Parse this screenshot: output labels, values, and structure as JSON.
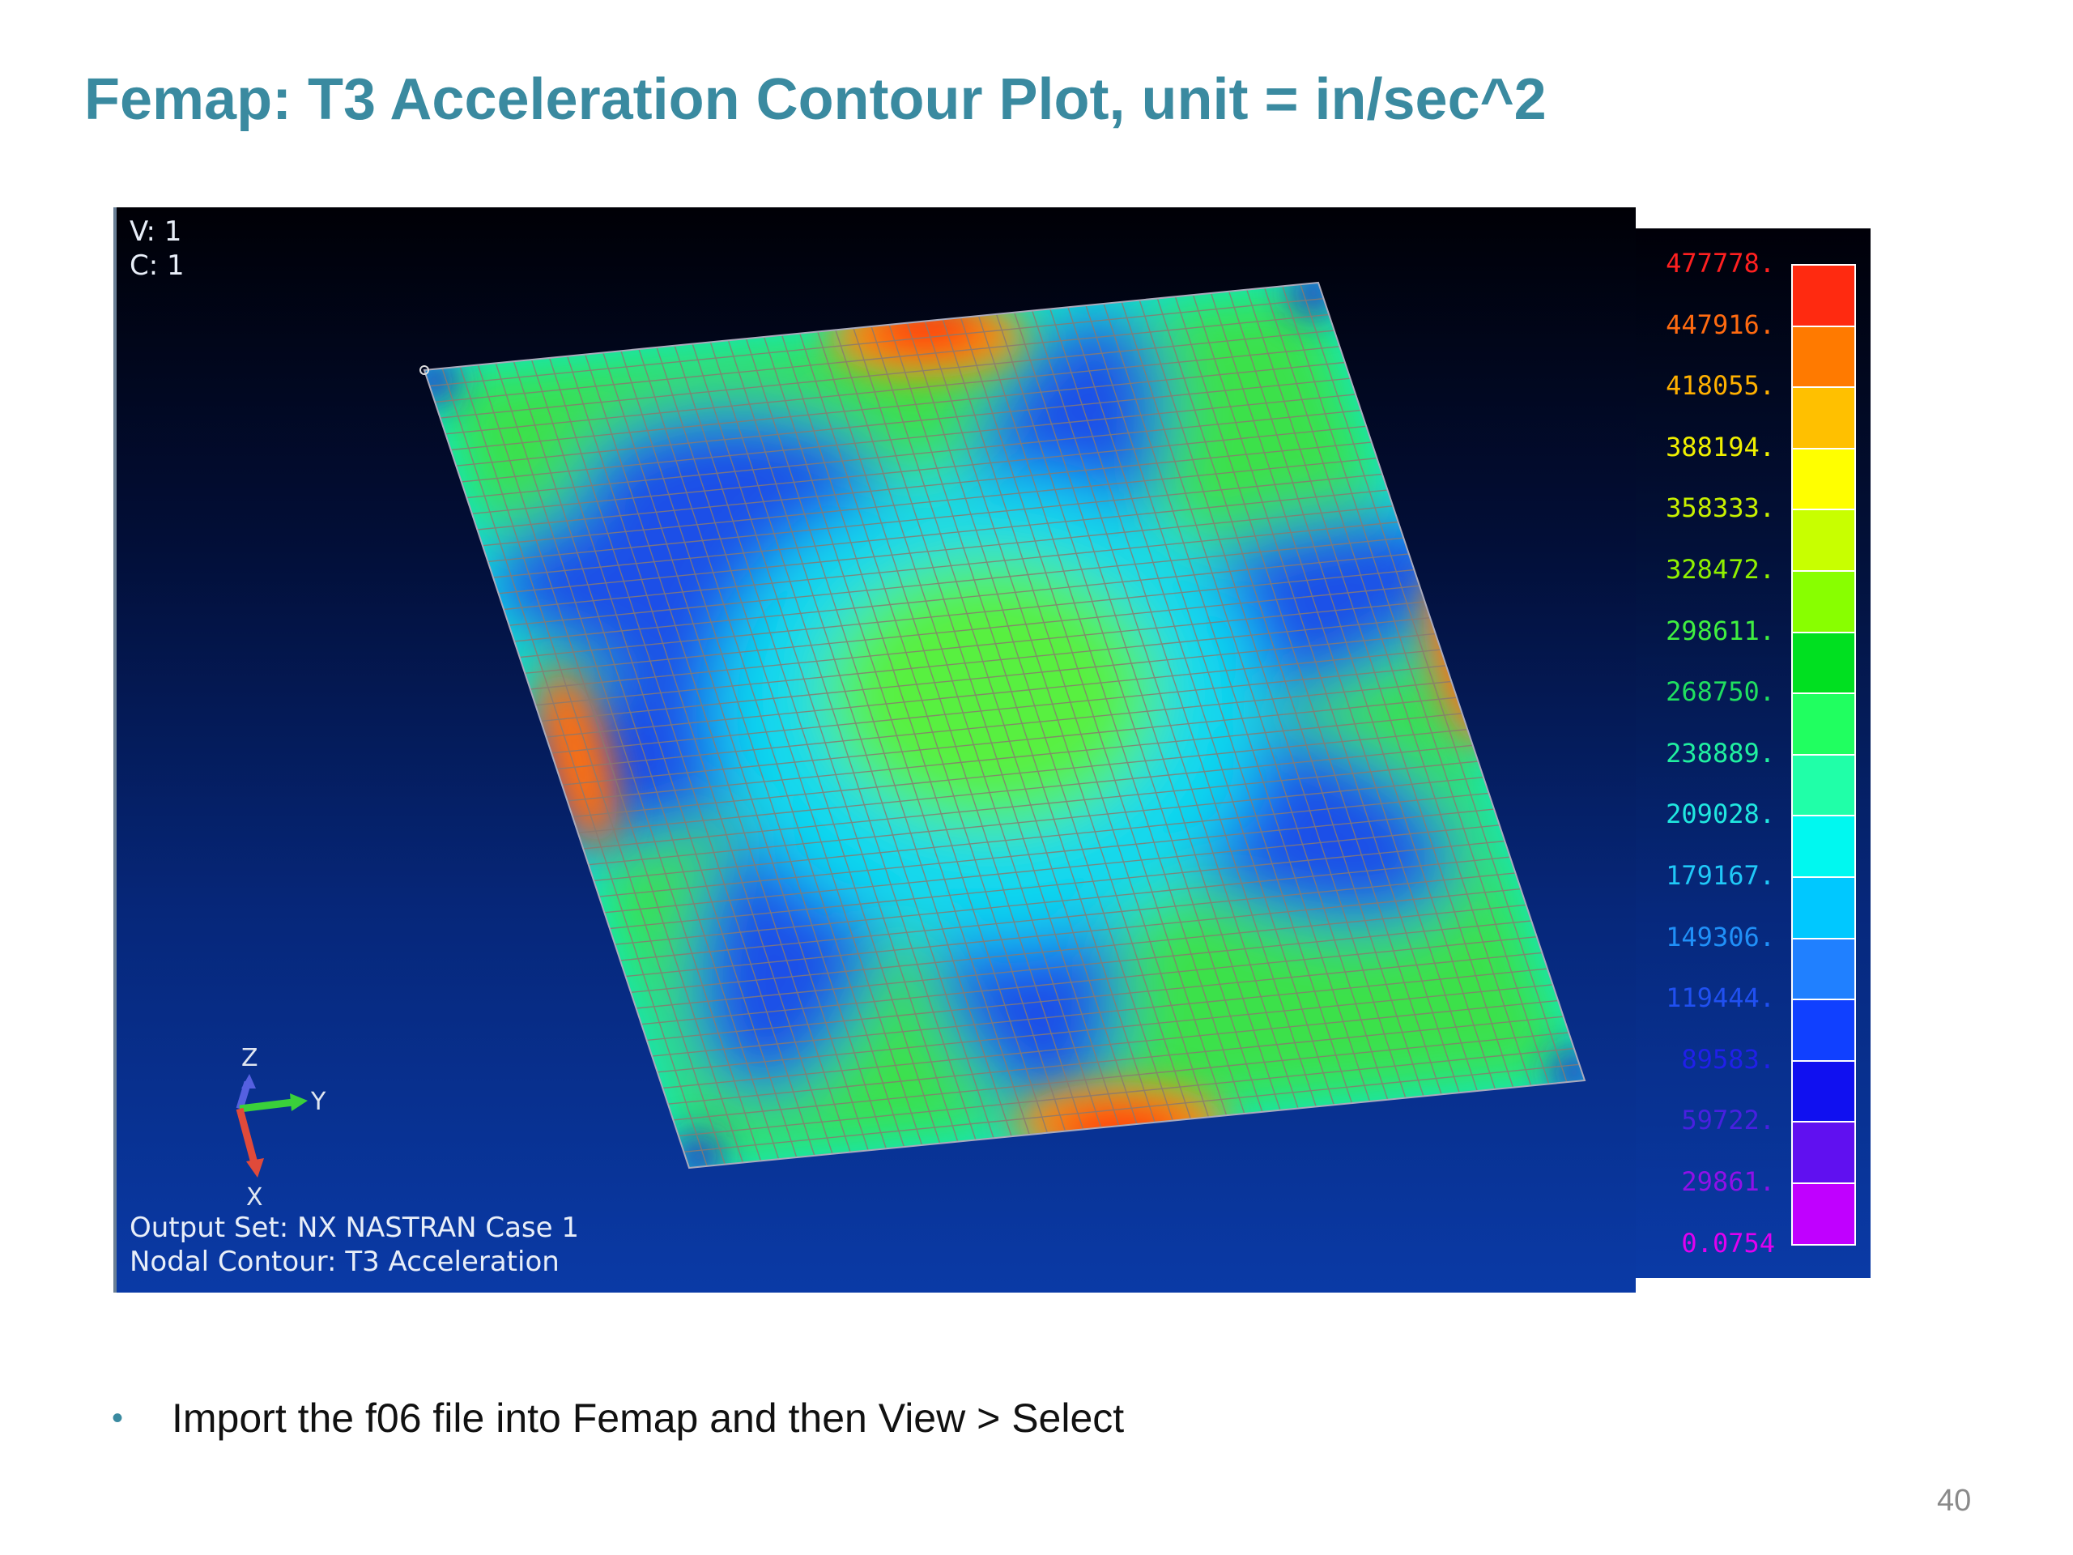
{
  "slide": {
    "title": "Femap:  T3 Acceleration Contour Plot, unit = in/sec^2",
    "bullet": "Import the f06 file into Femap and then  View > Select",
    "page_number": "40"
  },
  "viewport": {
    "view_label": "V: 1",
    "case_label": "C: 1",
    "output_set": "Output Set: NX NASTRAN Case 1",
    "nodal_contour": "Nodal Contour: T3 Acceleration",
    "axes": {
      "z": "Z",
      "y": "Y",
      "x": "X"
    },
    "axis_colors": {
      "z": "#5560e0",
      "y": "#3ad03a",
      "x": "#e04a3a"
    }
  },
  "legend": {
    "labels": [
      "477778.",
      "447916.",
      "418055.",
      "388194.",
      "358333.",
      "328472.",
      "298611.",
      "268750.",
      "238889.",
      "209028.",
      "179167.",
      "149306.",
      "119444.",
      "89583.",
      "59722.",
      "29861.",
      "0.0754"
    ],
    "label_colors": [
      "#ff2020",
      "#ff6a10",
      "#ffb000",
      "#f0f000",
      "#c8f000",
      "#90f000",
      "#40f040",
      "#20e060",
      "#20f0a0",
      "#20e8e0",
      "#20c8f8",
      "#2090f8",
      "#2050f0",
      "#2020e8",
      "#4820e0",
      "#9010e8",
      "#e000f0"
    ],
    "swatch_colors": [
      "#ff2a10",
      "#ff7a00",
      "#ffc000",
      "#ffff00",
      "#c8ff00",
      "#88ff00",
      "#00e020",
      "#20ff60",
      "#20ffa8",
      "#00f8f0",
      "#00c8ff",
      "#2080ff",
      "#1040ff",
      "#1010f0",
      "#6010f0",
      "#c000ff"
    ]
  },
  "contour": {
    "field": "T3 Acceleration",
    "unit": "in/sec^2",
    "min": 0.0754,
    "max": 477778.0,
    "mesh_divisions": 50
  }
}
